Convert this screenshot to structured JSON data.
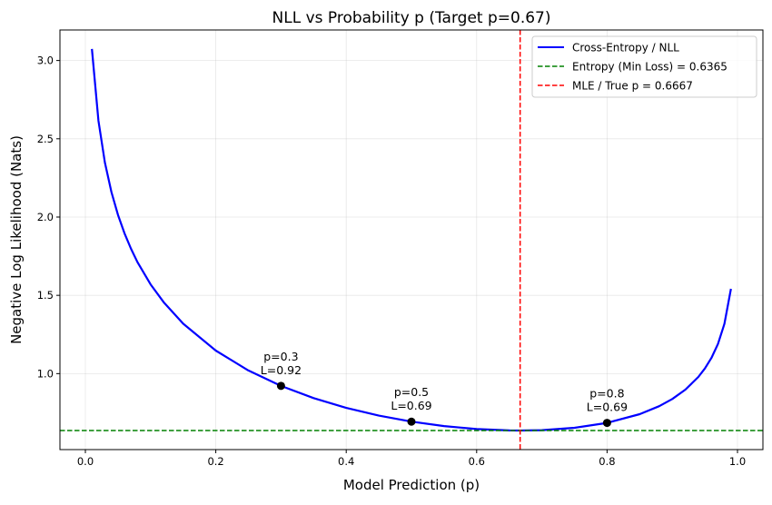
{
  "chart_data": {
    "type": "line",
    "title": "NLL vs Probability p (Target p=0.67)",
    "xlabel": "Model Prediction (p)",
    "ylabel": "Negative Log Likelihood (Nats)",
    "xlim": [
      -0.039,
      1.039
    ],
    "ylim": [
      0.5147,
      3.195
    ],
    "xticks": [
      0.0,
      0.2,
      0.4,
      0.6,
      0.8,
      1.0
    ],
    "xtick_labels": [
      "0.0",
      "0.2",
      "0.4",
      "0.6",
      "0.8",
      "1.0"
    ],
    "yticks": [
      1.0,
      1.5,
      2.0,
      2.5,
      3.0
    ],
    "ytick_labels": [
      "1.0",
      "1.5",
      "2.0",
      "2.5",
      "3.0"
    ],
    "grid": true,
    "legend_position": "top-right",
    "series": [
      {
        "name": "Cross-Entropy / NLL",
        "color": "#0000ff",
        "style": "solid",
        "x": [
          0.01,
          0.02,
          0.03,
          0.04,
          0.05,
          0.06,
          0.07,
          0.08,
          0.1,
          0.12,
          0.15,
          0.2,
          0.25,
          0.3,
          0.35,
          0.4,
          0.45,
          0.5,
          0.55,
          0.6,
          0.65,
          0.6667,
          0.7,
          0.75,
          0.8,
          0.85,
          0.88,
          0.9,
          0.92,
          0.94,
          0.95,
          0.96,
          0.97,
          0.98,
          0.99
        ],
        "y": [
          3.0735,
          2.615,
          2.348,
          2.1595,
          2.014,
          1.8962,
          1.797,
          1.7116,
          1.57,
          1.4561,
          1.319,
          1.147,
          1.02,
          0.9216,
          0.8435,
          0.7811,
          0.7316,
          0.6931,
          0.6647,
          0.646,
          0.6371,
          0.6365,
          0.6391,
          0.6539,
          0.6852,
          0.7407,
          0.792,
          0.8378,
          0.8975,
          0.979,
          1.0328,
          1.1002,
          1.1892,
          1.3175,
          1.5418
        ]
      }
    ],
    "reference_lines": [
      {
        "name": "Entropy (Min Loss) = 0.6365",
        "orientation": "horizontal",
        "value": 0.6365,
        "color": "#008000",
        "style": "dashed"
      },
      {
        "name": "MLE / True p = 0.6667",
        "orientation": "vertical",
        "value": 0.6667,
        "color": "#ff0000",
        "style": "dashed"
      }
    ],
    "highlight_points": [
      {
        "x": 0.3,
        "y": 0.9216,
        "label_line1": "p=0.3",
        "label_line2": "L=0.92"
      },
      {
        "x": 0.5,
        "y": 0.6931,
        "label_line1": "p=0.5",
        "label_line2": "L=0.69"
      },
      {
        "x": 0.8,
        "y": 0.6852,
        "label_line1": "p=0.8",
        "label_line2": "L=0.69"
      }
    ]
  }
}
